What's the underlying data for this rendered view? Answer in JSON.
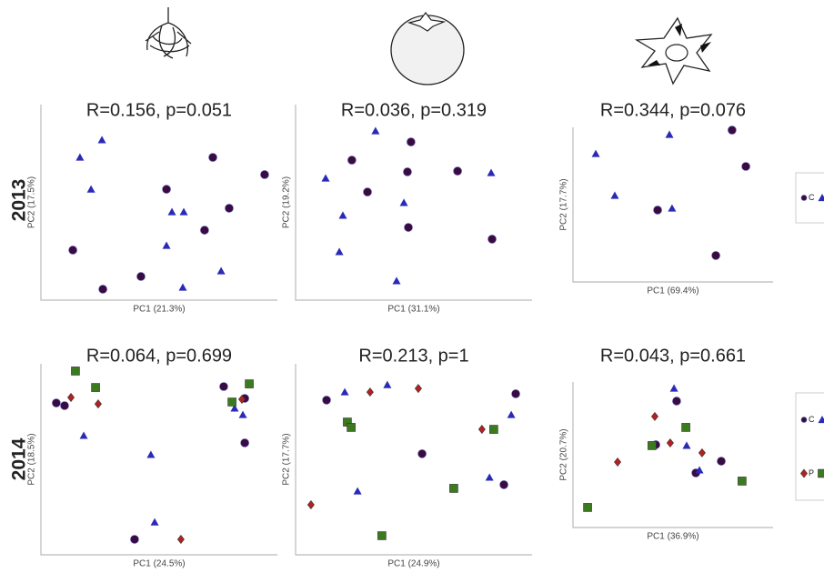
{
  "row_labels": [
    "2013",
    "2014"
  ],
  "chart_data": [
    {
      "type": "scatter",
      "title": "R=0.156, p=0.051",
      "x_label": "PC1 (21.3%)",
      "y_label": "PC2 (17.5%)",
      "xlim": [
        0,
        100
      ],
      "ylim": [
        0,
        100
      ],
      "legend": false,
      "series": [
        {
          "name": "C",
          "marker": "circle",
          "color": "#3a0b40",
          "x": [
            13.5,
            26.2,
            42.3,
            53.1,
            72.7,
            69.2,
            79.6,
            94.6
          ],
          "y": [
            25.6,
            5.6,
            12.1,
            56.7,
            73.0,
            35.8,
            47.0,
            64.2
          ]
        },
        {
          "marker": "triangle",
          "color": "#2a2ab8",
          "x": [
            16.5,
            25.8,
            21.2,
            55.4,
            60.4,
            53.1,
            60.0,
            76.2
          ],
          "y": [
            73.0,
            81.9,
            56.7,
            45.1,
            45.1,
            27.9,
            6.5,
            14.9
          ]
        }
      ]
    },
    {
      "type": "scatter",
      "title": "R=0.036, p=0.319",
      "x_label": "PC1 (31.1%)",
      "y_label": "PC2 (19.2%)",
      "xlim": [
        0,
        100
      ],
      "ylim": [
        0,
        100
      ],
      "legend": false,
      "series": [
        {
          "name": "C",
          "marker": "circle",
          "color": "#3a0b40",
          "x": [
            23.8,
            30.4,
            48.8,
            47.3,
            68.5,
            47.7,
            83.1
          ],
          "y": [
            71.6,
            55.3,
            80.9,
            65.6,
            66.0,
            37.2,
            31.2
          ]
        },
        {
          "marker": "triangle",
          "color": "#2a2ab8",
          "x": [
            33.8,
            12.7,
            20.0,
            18.5,
            45.8,
            42.7,
            82.7
          ],
          "y": [
            86.5,
            62.3,
            43.3,
            24.7,
            49.8,
            9.8,
            65.1
          ]
        }
      ]
    },
    {
      "type": "scatter",
      "title": "R=0.344, p=0.076",
      "x_label": "PC1 (69.4%)",
      "y_label": "PC2 (17.7%)",
      "xlim": [
        0,
        100
      ],
      "ylim": [
        0,
        100
      ],
      "legend": true,
      "series": [
        {
          "name": "C",
          "marker": "circle",
          "color": "#3a0b40",
          "x": [
            79.5,
            86.4,
            42.3,
            71.4
          ],
          "y": [
            98.2,
            74.7,
            46.5,
            17.1
          ]
        },
        {
          "marker": "triangle",
          "color": "#2a2ab8",
          "x": [
            11.4,
            20.9,
            48.2,
            49.5
          ],
          "y": [
            82.9,
            55.9,
            95.3,
            47.6
          ]
        }
      ]
    },
    {
      "type": "scatter",
      "title": "R=0.064, p=0.699",
      "x_label": "PC1 (24.5%)",
      "y_label": "PC2 (18.5%)",
      "xlim": [
        0,
        100
      ],
      "ylim": [
        0,
        100
      ],
      "legend": false,
      "series": [
        {
          "name": "C",
          "marker": "circle",
          "color": "#3a0b40",
          "x": [
            6.5,
            10.0,
            77.3,
            86.2,
            86.2,
            39.6
          ],
          "y": [
            79.5,
            78.1,
            88.1,
            81.9,
            58.6,
            8.1
          ]
        },
        {
          "marker": "triangle",
          "color": "#2a2ab8",
          "x": [
            18.1,
            46.5,
            48.1,
            81.9,
            85.4
          ],
          "y": [
            62.4,
            52.4,
            17.1,
            76.7,
            73.3
          ]
        },
        {
          "name": "P",
          "marker": "diamond",
          "color": "#b52020",
          "x": [
            12.7,
            24.2,
            59.2,
            85.0
          ],
          "y": [
            82.4,
            79.0,
            8.1,
            81.4
          ]
        },
        {
          "marker": "square",
          "color": "#3b7a1e",
          "x": [
            14.6,
            23.1,
            80.8,
            88.1
          ],
          "y": [
            96.2,
            87.6,
            80.0,
            89.5
          ]
        }
      ]
    },
    {
      "type": "scatter",
      "title": "R=0.213, p=1",
      "x_label": "PC1 (24.9%)",
      "y_label": "PC2 (17.7%)",
      "xlim": [
        0,
        100
      ],
      "ylim": [
        0,
        100
      ],
      "legend": false,
      "series": [
        {
          "name": "C",
          "marker": "circle",
          "color": "#3a0b40",
          "x": [
            13.1,
            93.1,
            53.5,
            88.1
          ],
          "y": [
            81.0,
            84.3,
            52.9,
            36.7
          ]
        },
        {
          "marker": "triangle",
          "color": "#2a2ab8",
          "x": [
            20.8,
            38.8,
            26.2,
            82.0,
            91.2
          ],
          "y": [
            85.2,
            89.0,
            33.3,
            40.5,
            73.3
          ]
        },
        {
          "name": "P",
          "marker": "diamond",
          "color": "#b52020",
          "x": [
            31.5,
            51.9,
            78.8,
            6.5
          ],
          "y": [
            85.2,
            87.1,
            65.7,
            26.2
          ]
        },
        {
          "marker": "square",
          "color": "#3b7a1e",
          "x": [
            21.9,
            23.5,
            83.8,
            66.9,
            36.5
          ],
          "y": [
            69.5,
            66.7,
            65.7,
            34.8,
            10.0
          ]
        }
      ]
    },
    {
      "type": "scatter",
      "title": "R=0.043, p=0.661",
      "x_label": "PC1 (36.9%)",
      "y_label": "PC2 (20.7%)",
      "xlim": [
        0,
        100
      ],
      "ylim": [
        0,
        100
      ],
      "legend": true,
      "series": [
        {
          "name": "C",
          "marker": "circle",
          "color": "#3a0b40",
          "x": [
            51.8,
            41.4,
            61.4,
            74.1
          ],
          "y": [
            86.9,
            56.9,
            37.5,
            45.6
          ]
        },
        {
          "marker": "triangle",
          "color": "#2a2ab8",
          "x": [
            50.5,
            56.8,
            63.2
          ],
          "y": [
            95.6,
            56.3,
            39.4
          ]
        },
        {
          "name": "P",
          "marker": "diamond",
          "color": "#b52020",
          "x": [
            40.9,
            48.6,
            64.5,
            22.3
          ],
          "y": [
            76.3,
            58.1,
            51.3,
            45.0
          ]
        },
        {
          "marker": "square",
          "color": "#3b7a1e",
          "x": [
            56.4,
            39.5,
            84.5,
            7.3
          ],
          "y": [
            68.8,
            56.3,
            31.9,
            13.8
          ]
        }
      ]
    }
  ]
}
